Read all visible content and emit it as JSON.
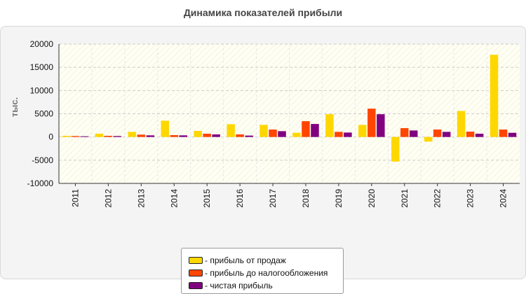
{
  "chart_data": {
    "type": "bar",
    "title": "Динамика показателей прибыли",
    "ylabel": "тыс.",
    "xlabel": "",
    "ylim": [
      -10000,
      20000
    ],
    "yticks": [
      20000,
      15000,
      10000,
      5000,
      0,
      -5000,
      -10000
    ],
    "categories": [
      "2011",
      "2012",
      "2013",
      "2014",
      "2015",
      "2016",
      "2017",
      "2018",
      "2019",
      "2020",
      "2021",
      "2022",
      "2023",
      "2024"
    ],
    "series": [
      {
        "name": "- прибыль от продаж",
        "color": "#ffd700",
        "values": [
          250,
          700,
          1100,
          3500,
          1300,
          2750,
          2600,
          900,
          4900,
          2600,
          -5300,
          -1000,
          5600,
          17700
        ]
      },
      {
        "name": "- прибыль до налогообложения",
        "color": "#ff4500",
        "values": [
          200,
          250,
          500,
          400,
          700,
          550,
          1600,
          3400,
          1100,
          6100,
          1900,
          1600,
          1150,
          1600
        ]
      },
      {
        "name": "- чистая прибыль",
        "color": "#800080",
        "values": [
          150,
          200,
          350,
          350,
          550,
          300,
          1250,
          2800,
          950,
          4900,
          1400,
          1100,
          700,
          900
        ]
      }
    ],
    "grid": true,
    "legend_position": "bottom"
  },
  "colors": {
    "panel_background": "#f4f4f4",
    "plot_background": "#fffff5",
    "grid": "#cccccc"
  }
}
